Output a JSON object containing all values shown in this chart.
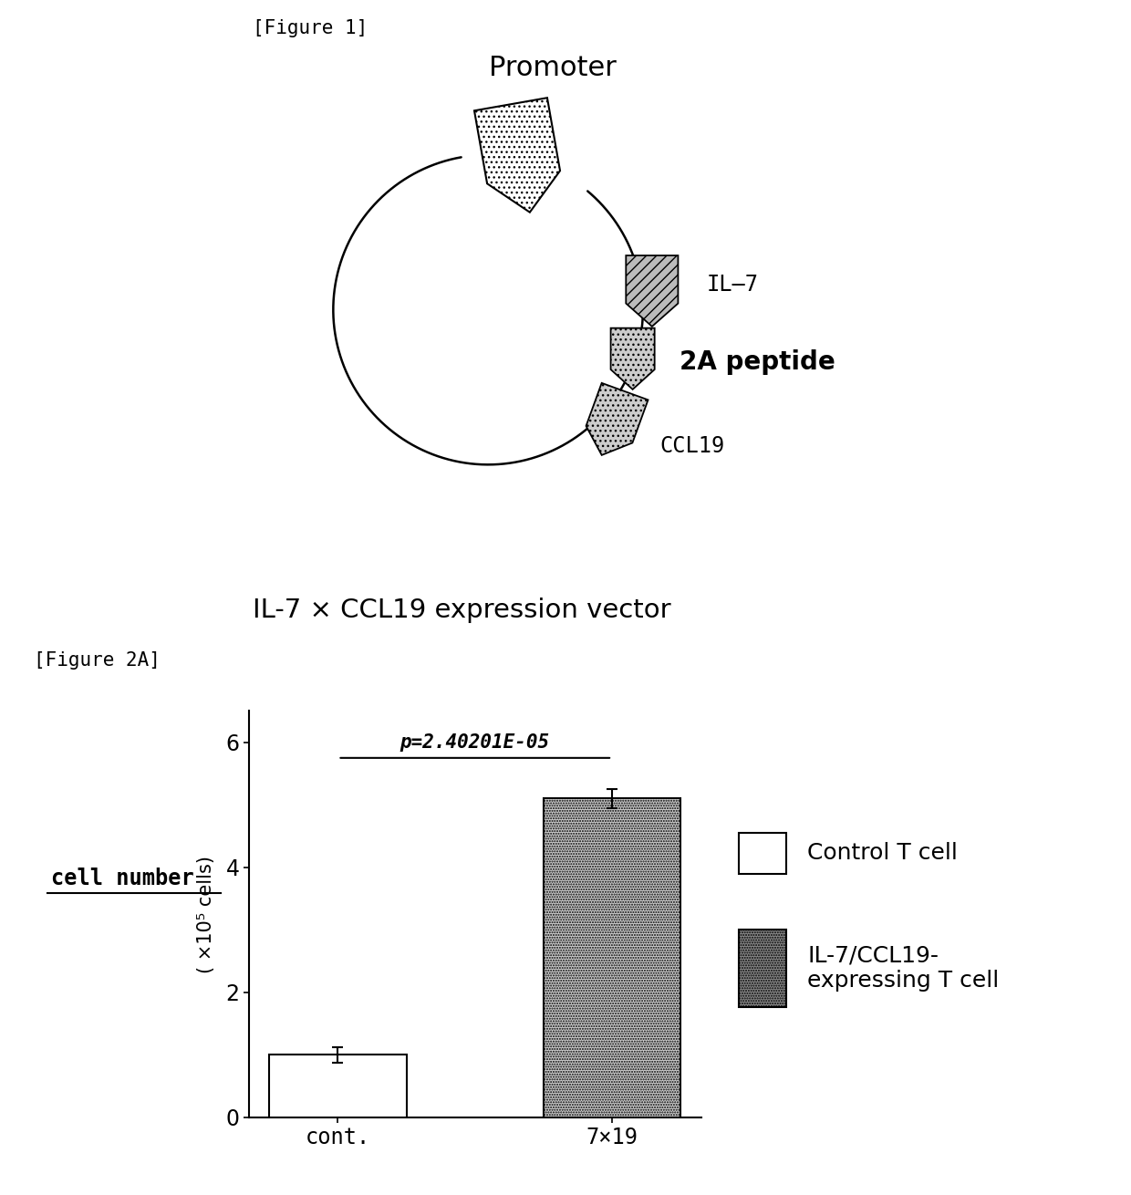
{
  "fig1_label": "[Figure 1]",
  "fig2_label": "[Figure 2A]",
  "promoter_label": "Promoter",
  "il7_label": "IL—7",
  "peptide_label": "2A peptide",
  "ccl19_label": "CCL19",
  "vector_label": "IL-7 × CCL19 expression vector",
  "bar_values": [
    1.0,
    5.1
  ],
  "bar_errors": [
    0.12,
    0.15
  ],
  "bar_labels": [
    "cont.",
    "7×19"
  ],
  "bar_colors": [
    "#ffffff",
    "#cccccc"
  ],
  "bar_edgecolor": "#000000",
  "ylabel": "( ×10⁵ cells)",
  "ylabel_left": "cell number",
  "ylim": [
    0,
    6.5
  ],
  "yticks": [
    0,
    2,
    4,
    6
  ],
  "pvalue_text": "p=2.40201E-05",
  "legend_label1": "Control T cell",
  "legend_label2": "IL-7/CCL19-\nexpressing T cell",
  "background_color": "#ffffff"
}
